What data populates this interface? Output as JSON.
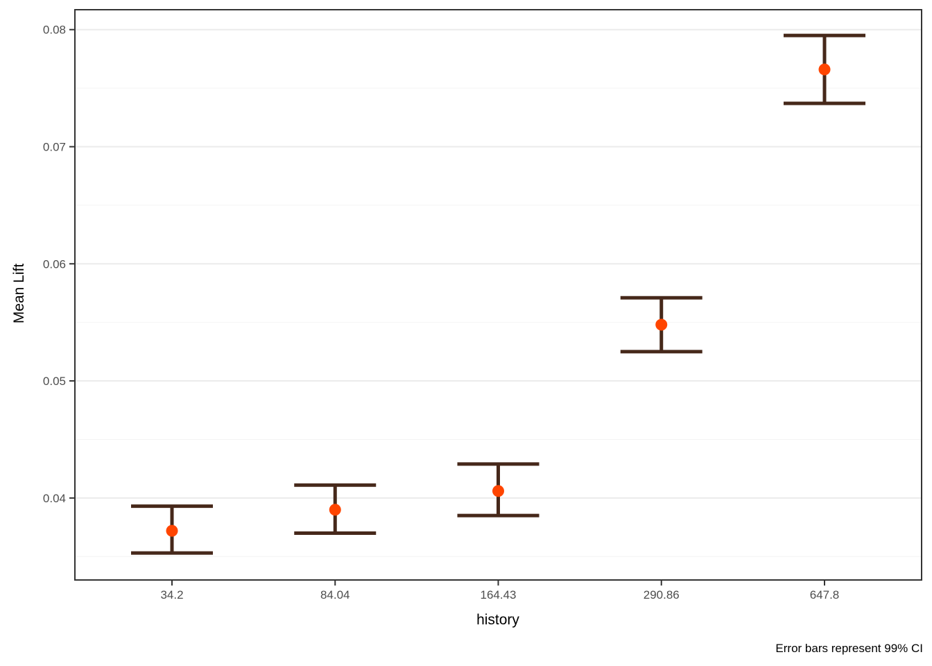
{
  "chart_data": {
    "type": "scatter",
    "subtype": "point-with-errorbars",
    "title": "",
    "xlabel": "history",
    "ylabel": "Mean Lift",
    "caption": "Error bars represent 99% CI",
    "error_bars": "99% CI",
    "legend": "none",
    "grid": "horizontal-major-and-minor-only",
    "categories": [
      "34.2",
      "84.04",
      "164.43",
      "290.86",
      "647.8"
    ],
    "series": [
      {
        "name": "Mean Lift",
        "values": [
          0.0372,
          0.039,
          0.0406,
          0.0548,
          0.0766
        ],
        "ci_lower": [
          0.0353,
          0.037,
          0.0385,
          0.0525,
          0.0737
        ],
        "ci_upper": [
          0.0393,
          0.0411,
          0.0429,
          0.0571,
          0.0795
        ]
      }
    ],
    "y_ticks": [
      0.04,
      0.05,
      0.06,
      0.07,
      0.08
    ],
    "y_tick_labels": [
      "0.04",
      "0.05",
      "0.06",
      "0.07",
      "0.08"
    ],
    "y_minor_ticks": [
      0.035,
      0.045,
      0.055,
      0.065,
      0.075
    ],
    "ylim": [
      0.033,
      0.0817
    ],
    "colors": {
      "point": "#FF4500",
      "errorbar": "#46281A",
      "grid_major": "#EBEBEB",
      "grid_minor": "#F4F4F4",
      "panel_border": "#333333",
      "axis_tick": "#333333",
      "tick_label": "#4D4D4D",
      "title_text": "#000000",
      "background": "#FFFFFF"
    }
  }
}
